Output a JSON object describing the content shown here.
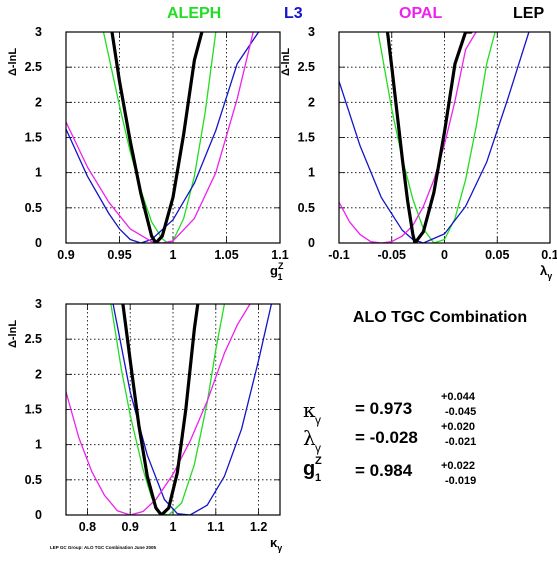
{
  "legend": [
    {
      "label": "ALEPH",
      "color": "#22dd22"
    },
    {
      "label": "L3",
      "color": "#1414c8"
    },
    {
      "label": "OPAL",
      "color": "#ee22ee"
    },
    {
      "label": "LEP",
      "color": "#000000"
    }
  ],
  "combination_title": "ALO TGC Combination",
  "results": [
    {
      "symbol": "κ",
      "subscript": "γ",
      "value": "= 0.973",
      "err_plus": "+0.044",
      "err_minus": "-0.045"
    },
    {
      "symbol": "λ",
      "subscript": "γ",
      "value": "= -0.028",
      "err_plus": "+0.020",
      "err_minus": "-0.021"
    },
    {
      "symbol": "g",
      "subscript": "1",
      "superscript": "Z",
      "value": "= 0.984",
      "err_plus": "+0.022",
      "err_minus": "-0.019"
    }
  ],
  "footnote": "LEP GC Group: ALO TGC Combination June 2005",
  "chart_data": [
    {
      "type": "line",
      "ylabel": "Δ-lnL",
      "xlabel": "g",
      "xlabel_sub": "1",
      "xlabel_sup": "Z",
      "xlim": [
        0.9,
        1.1
      ],
      "ylim": [
        0,
        3
      ],
      "xticks": [
        "0.9",
        "0.95",
        "1",
        "1.05",
        "1.1"
      ],
      "yticks": [
        "0",
        "0.5",
        "1",
        "1.5",
        "2",
        "2.5",
        "3"
      ],
      "grid": true,
      "series": [
        {
          "name": "ALEPH",
          "color": "#22dd22",
          "x": [
            0.935,
            0.95,
            0.96,
            0.97,
            0.98,
            0.99,
            0.995,
            1.0,
            1.01,
            1.02,
            1.03,
            1.04
          ],
          "y": [
            3.0,
            1.95,
            1.3,
            0.75,
            0.3,
            0.06,
            0.0,
            0.03,
            0.35,
            0.95,
            1.85,
            3.0
          ]
        },
        {
          "name": "L3",
          "color": "#1414c8",
          "x": [
            0.9,
            0.92,
            0.94,
            0.95,
            0.96,
            0.97,
            0.98,
            1.0,
            1.02,
            1.04,
            1.06,
            1.08
          ],
          "y": [
            1.62,
            0.95,
            0.42,
            0.2,
            0.05,
            0.0,
            0.05,
            0.33,
            0.85,
            1.6,
            2.55,
            3.0
          ]
        },
        {
          "name": "OPAL",
          "color": "#ee22ee",
          "x": [
            0.9,
            0.92,
            0.94,
            0.96,
            0.98,
            0.99,
            1.0,
            1.02,
            1.04,
            1.06,
            1.075
          ],
          "y": [
            1.72,
            1.08,
            0.58,
            0.2,
            0.02,
            0.0,
            0.03,
            0.35,
            1.0,
            2.05,
            3.0
          ]
        },
        {
          "name": "LEP",
          "color": "#000000",
          "x": [
            0.943,
            0.95,
            0.96,
            0.97,
            0.98,
            0.984,
            0.99,
            1.0,
            1.01,
            1.02,
            1.027
          ],
          "y": [
            3.0,
            2.3,
            1.45,
            0.7,
            0.1,
            0.0,
            0.1,
            0.65,
            1.55,
            2.6,
            3.0
          ]
        }
      ]
    },
    {
      "type": "line",
      "ylabel": "Δ-lnL",
      "xlabel": "λ",
      "xlabel_sub": "γ",
      "xlim": [
        -0.1,
        0.1
      ],
      "ylim": [
        0,
        3
      ],
      "xticks": [
        "-0.1",
        "-0.05",
        "0",
        "0.05",
        "0.1"
      ],
      "yticks": [
        "0",
        "0.5",
        "1",
        "1.5",
        "2",
        "2.5",
        "3"
      ],
      "grid": true,
      "series": [
        {
          "name": "ALEPH",
          "color": "#22dd22",
          "x": [
            -0.063,
            -0.05,
            -0.04,
            -0.03,
            -0.02,
            -0.01,
            0.0,
            0.01,
            0.02,
            0.03,
            0.04,
            0.048
          ],
          "y": [
            3.0,
            1.9,
            1.2,
            0.62,
            0.2,
            0.0,
            0.05,
            0.35,
            0.9,
            1.65,
            2.55,
            3.0
          ]
        },
        {
          "name": "L3",
          "color": "#1414c8",
          "x": [
            -0.1,
            -0.08,
            -0.06,
            -0.04,
            -0.03,
            -0.02,
            0.0,
            0.02,
            0.04,
            0.06,
            0.08
          ],
          "y": [
            2.3,
            1.38,
            0.65,
            0.18,
            0.05,
            0.0,
            0.13,
            0.52,
            1.15,
            2.05,
            3.0
          ]
        },
        {
          "name": "OPAL",
          "color": "#ee22ee",
          "x": [
            -0.1,
            -0.09,
            -0.08,
            -0.07,
            -0.06,
            -0.05,
            -0.04,
            -0.03,
            -0.02,
            -0.01,
            0.0,
            0.01,
            0.02,
            0.03
          ],
          "y": [
            0.58,
            0.3,
            0.12,
            0.02,
            0.0,
            0.02,
            0.1,
            0.25,
            0.52,
            0.9,
            1.4,
            2.02,
            2.75,
            3.0
          ]
        },
        {
          "name": "LEP",
          "color": "#000000",
          "x": [
            -0.054,
            -0.05,
            -0.04,
            -0.035,
            -0.03,
            -0.028,
            -0.02,
            -0.01,
            0.0,
            0.01,
            0.02,
            0.025
          ],
          "y": [
            3.0,
            2.5,
            1.2,
            0.6,
            0.12,
            0.0,
            0.16,
            0.72,
            1.58,
            2.55,
            3.0,
            3.0
          ]
        }
      ]
    },
    {
      "type": "line",
      "ylabel": "Δ-lnL",
      "xlabel": "κ",
      "xlabel_sub": "γ",
      "xlim": [
        0.75,
        1.25
      ],
      "ylim": [
        0,
        3
      ],
      "xticks": [
        "0.8",
        "0.9",
        "1",
        "1.1",
        "1.2"
      ],
      "yticks": [
        "0",
        "0.5",
        "1",
        "1.5",
        "2",
        "2.5",
        "3"
      ],
      "grid": true,
      "series": [
        {
          "name": "ALEPH",
          "color": "#22dd22",
          "x": [
            0.855,
            0.88,
            0.9,
            0.93,
            0.95,
            0.97,
            0.99,
            1.02,
            1.05,
            1.08,
            1.1,
            1.12
          ],
          "y": [
            3.0,
            2.05,
            1.42,
            0.65,
            0.25,
            0.02,
            0.0,
            0.17,
            0.72,
            1.6,
            2.35,
            3.0
          ]
        },
        {
          "name": "L3",
          "color": "#1414c8",
          "x": [
            0.86,
            0.9,
            0.94,
            0.98,
            1.01,
            1.04,
            1.08,
            1.12,
            1.16,
            1.2,
            1.23
          ],
          "y": [
            3.0,
            1.75,
            0.85,
            0.22,
            0.02,
            0.0,
            0.14,
            0.55,
            1.22,
            2.2,
            3.0
          ]
        },
        {
          "name": "OPAL",
          "color": "#ee22ee",
          "x": [
            0.75,
            0.78,
            0.81,
            0.84,
            0.87,
            0.9,
            0.93,
            0.96,
            1.0,
            1.04,
            1.08,
            1.12,
            1.15,
            1.18
          ],
          "y": [
            1.75,
            1.1,
            0.62,
            0.28,
            0.06,
            0.0,
            0.05,
            0.22,
            0.58,
            1.05,
            1.62,
            2.3,
            2.7,
            3.0
          ]
        },
        {
          "name": "LEP",
          "color": "#000000",
          "x": [
            0.883,
            0.9,
            0.92,
            0.94,
            0.96,
            0.973,
            0.99,
            1.01,
            1.03,
            1.05,
            1.058
          ],
          "y": [
            3.0,
            2.2,
            1.28,
            0.55,
            0.1,
            0.0,
            0.1,
            0.6,
            1.5,
            2.65,
            3.0
          ]
        }
      ]
    }
  ]
}
